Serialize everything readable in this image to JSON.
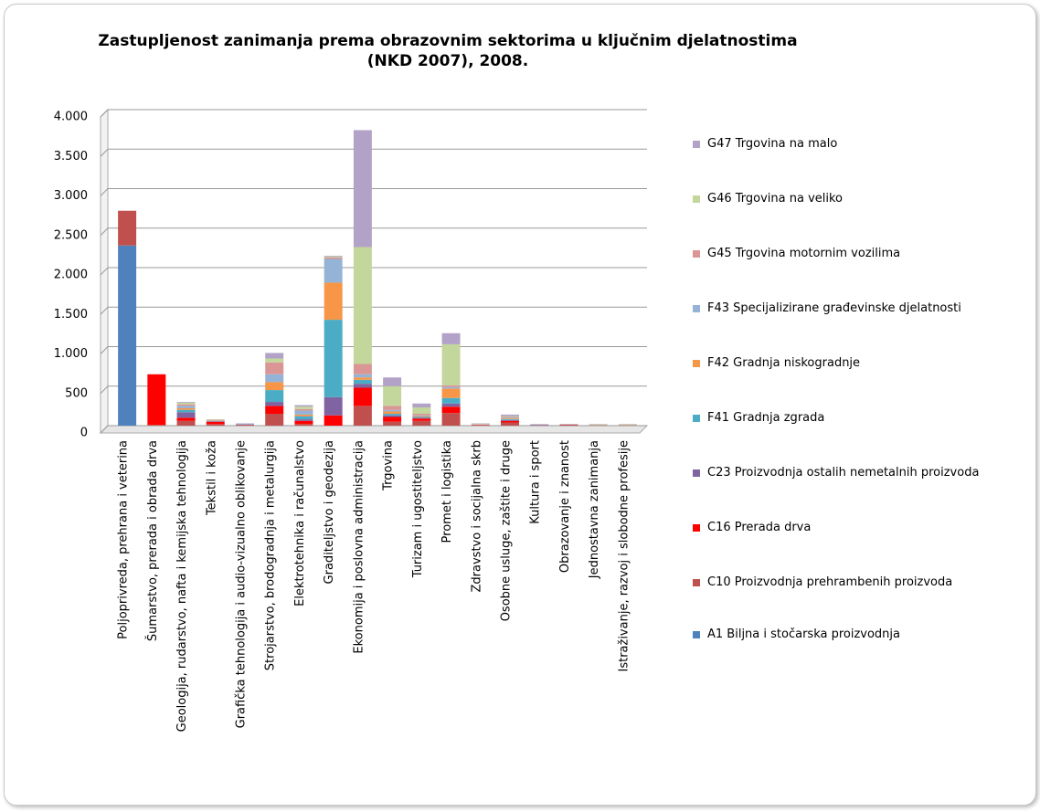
{
  "chart_data": {
    "type": "bar",
    "stacked": true,
    "title": "Zastupljenost zanimanja prema obrazovnim sektorima u ključnim djelatnostima (NKD 2007), 2008.",
    "categories": [
      "Poljoprivreda, prehrana i veterina",
      "Šumarstvo, prerada i obrada drva",
      "Geologija, rudarstvo, nafta i kemijska tehnologija",
      "Tekstil i koža",
      "Grafička tehnologija i audio-vizualno oblikovanje",
      "Strojarstvo, brodogradnja i metalurgija",
      "Elektrotehnika i računalstvo",
      "Graditeljstvo i geodezija",
      "Ekonomija i poslovna administracija",
      "Trgovina",
      "Turizam i ugostiteljstvo",
      "Promet i logistika",
      "Zdravstvo i socijalna skrb",
      "Osobne usluge, zaštite i druge",
      "Kultura i sport",
      "Obrazovanje i znanost",
      "Jednostavna zanimanja",
      "Istraživanje, razvoj i slobodne profesije"
    ],
    "series": [
      {
        "name": "A1 Biljna i stočarska proizvodnja",
        "color": "#4f81bd",
        "values": [
          2280,
          0,
          0,
          0,
          0,
          0,
          0,
          0,
          0,
          0,
          0,
          0,
          0,
          0,
          0,
          0,
          0,
          0
        ]
      },
      {
        "name": "C10 Proizvodnja prehrambenih proizvoda",
        "color": "#c0504d",
        "values": [
          440,
          10,
          60,
          20,
          5,
          150,
          20,
          0,
          250,
          50,
          60,
          160,
          5,
          40,
          5,
          15,
          5,
          5
        ]
      },
      {
        "name": "C16 Prerada drva",
        "color": "#ff0000",
        "values": [
          0,
          640,
          40,
          30,
          5,
          100,
          40,
          130,
          230,
          60,
          30,
          80,
          5,
          20,
          0,
          0,
          0,
          0
        ]
      },
      {
        "name": "C23 Proizvodnja ostalih nemetalnih proizvoda",
        "color": "#8064a2",
        "values": [
          0,
          0,
          70,
          5,
          5,
          50,
          20,
          230,
          50,
          20,
          10,
          40,
          0,
          10,
          5,
          0,
          0,
          0
        ]
      },
      {
        "name": "F41 Gradnja zgrada",
        "color": "#4bacc6",
        "values": [
          0,
          0,
          30,
          5,
          5,
          150,
          40,
          980,
          50,
          20,
          10,
          70,
          0,
          10,
          0,
          0,
          0,
          0
        ]
      },
      {
        "name": "F42 Gradnja niskogradnje",
        "color": "#f79646",
        "values": [
          0,
          0,
          20,
          5,
          0,
          100,
          20,
          470,
          30,
          30,
          10,
          120,
          0,
          10,
          0,
          0,
          0,
          0
        ]
      },
      {
        "name": "F43 Specijalizirane građevinske djelatnosti",
        "color": "#95b3d7",
        "values": [
          0,
          0,
          30,
          5,
          5,
          100,
          50,
          300,
          40,
          20,
          10,
          20,
          5,
          10,
          5,
          0,
          0,
          0
        ]
      },
      {
        "name": "G45 Trgovina motornim vozilima",
        "color": "#d99694",
        "values": [
          0,
          0,
          20,
          5,
          0,
          150,
          20,
          20,
          130,
          50,
          20,
          20,
          5,
          10,
          0,
          0,
          0,
          0
        ]
      },
      {
        "name": "G46 Trgovina na veliko",
        "color": "#c3d69b",
        "values": [
          0,
          0,
          20,
          5,
          0,
          50,
          30,
          10,
          1480,
          250,
          80,
          520,
          5,
          10,
          0,
          0,
          10,
          10
        ]
      },
      {
        "name": "G47 Trgovina na malo",
        "color": "#b3a2c7",
        "values": [
          0,
          0,
          10,
          0,
          5,
          70,
          20,
          10,
          1480,
          110,
          50,
          140,
          5,
          20,
          5,
          5,
          5,
          5
        ]
      }
    ],
    "ylim": [
      0,
      4000
    ],
    "yticks": [
      0,
      {
        "value": 500,
        "label": "500"
      },
      {
        "value": 1000,
        "label": "1.000"
      },
      {
        "value": 1500,
        "label": "1.500"
      },
      {
        "value": 2000,
        "label": "2.000"
      },
      {
        "value": 2500,
        "label": "2.500"
      },
      {
        "value": 3000,
        "label": "3.000"
      },
      {
        "value": 3500,
        "label": "3.500"
      },
      {
        "value": 4000,
        "label": "4.000"
      }
    ],
    "grid": true,
    "legend": "right"
  }
}
